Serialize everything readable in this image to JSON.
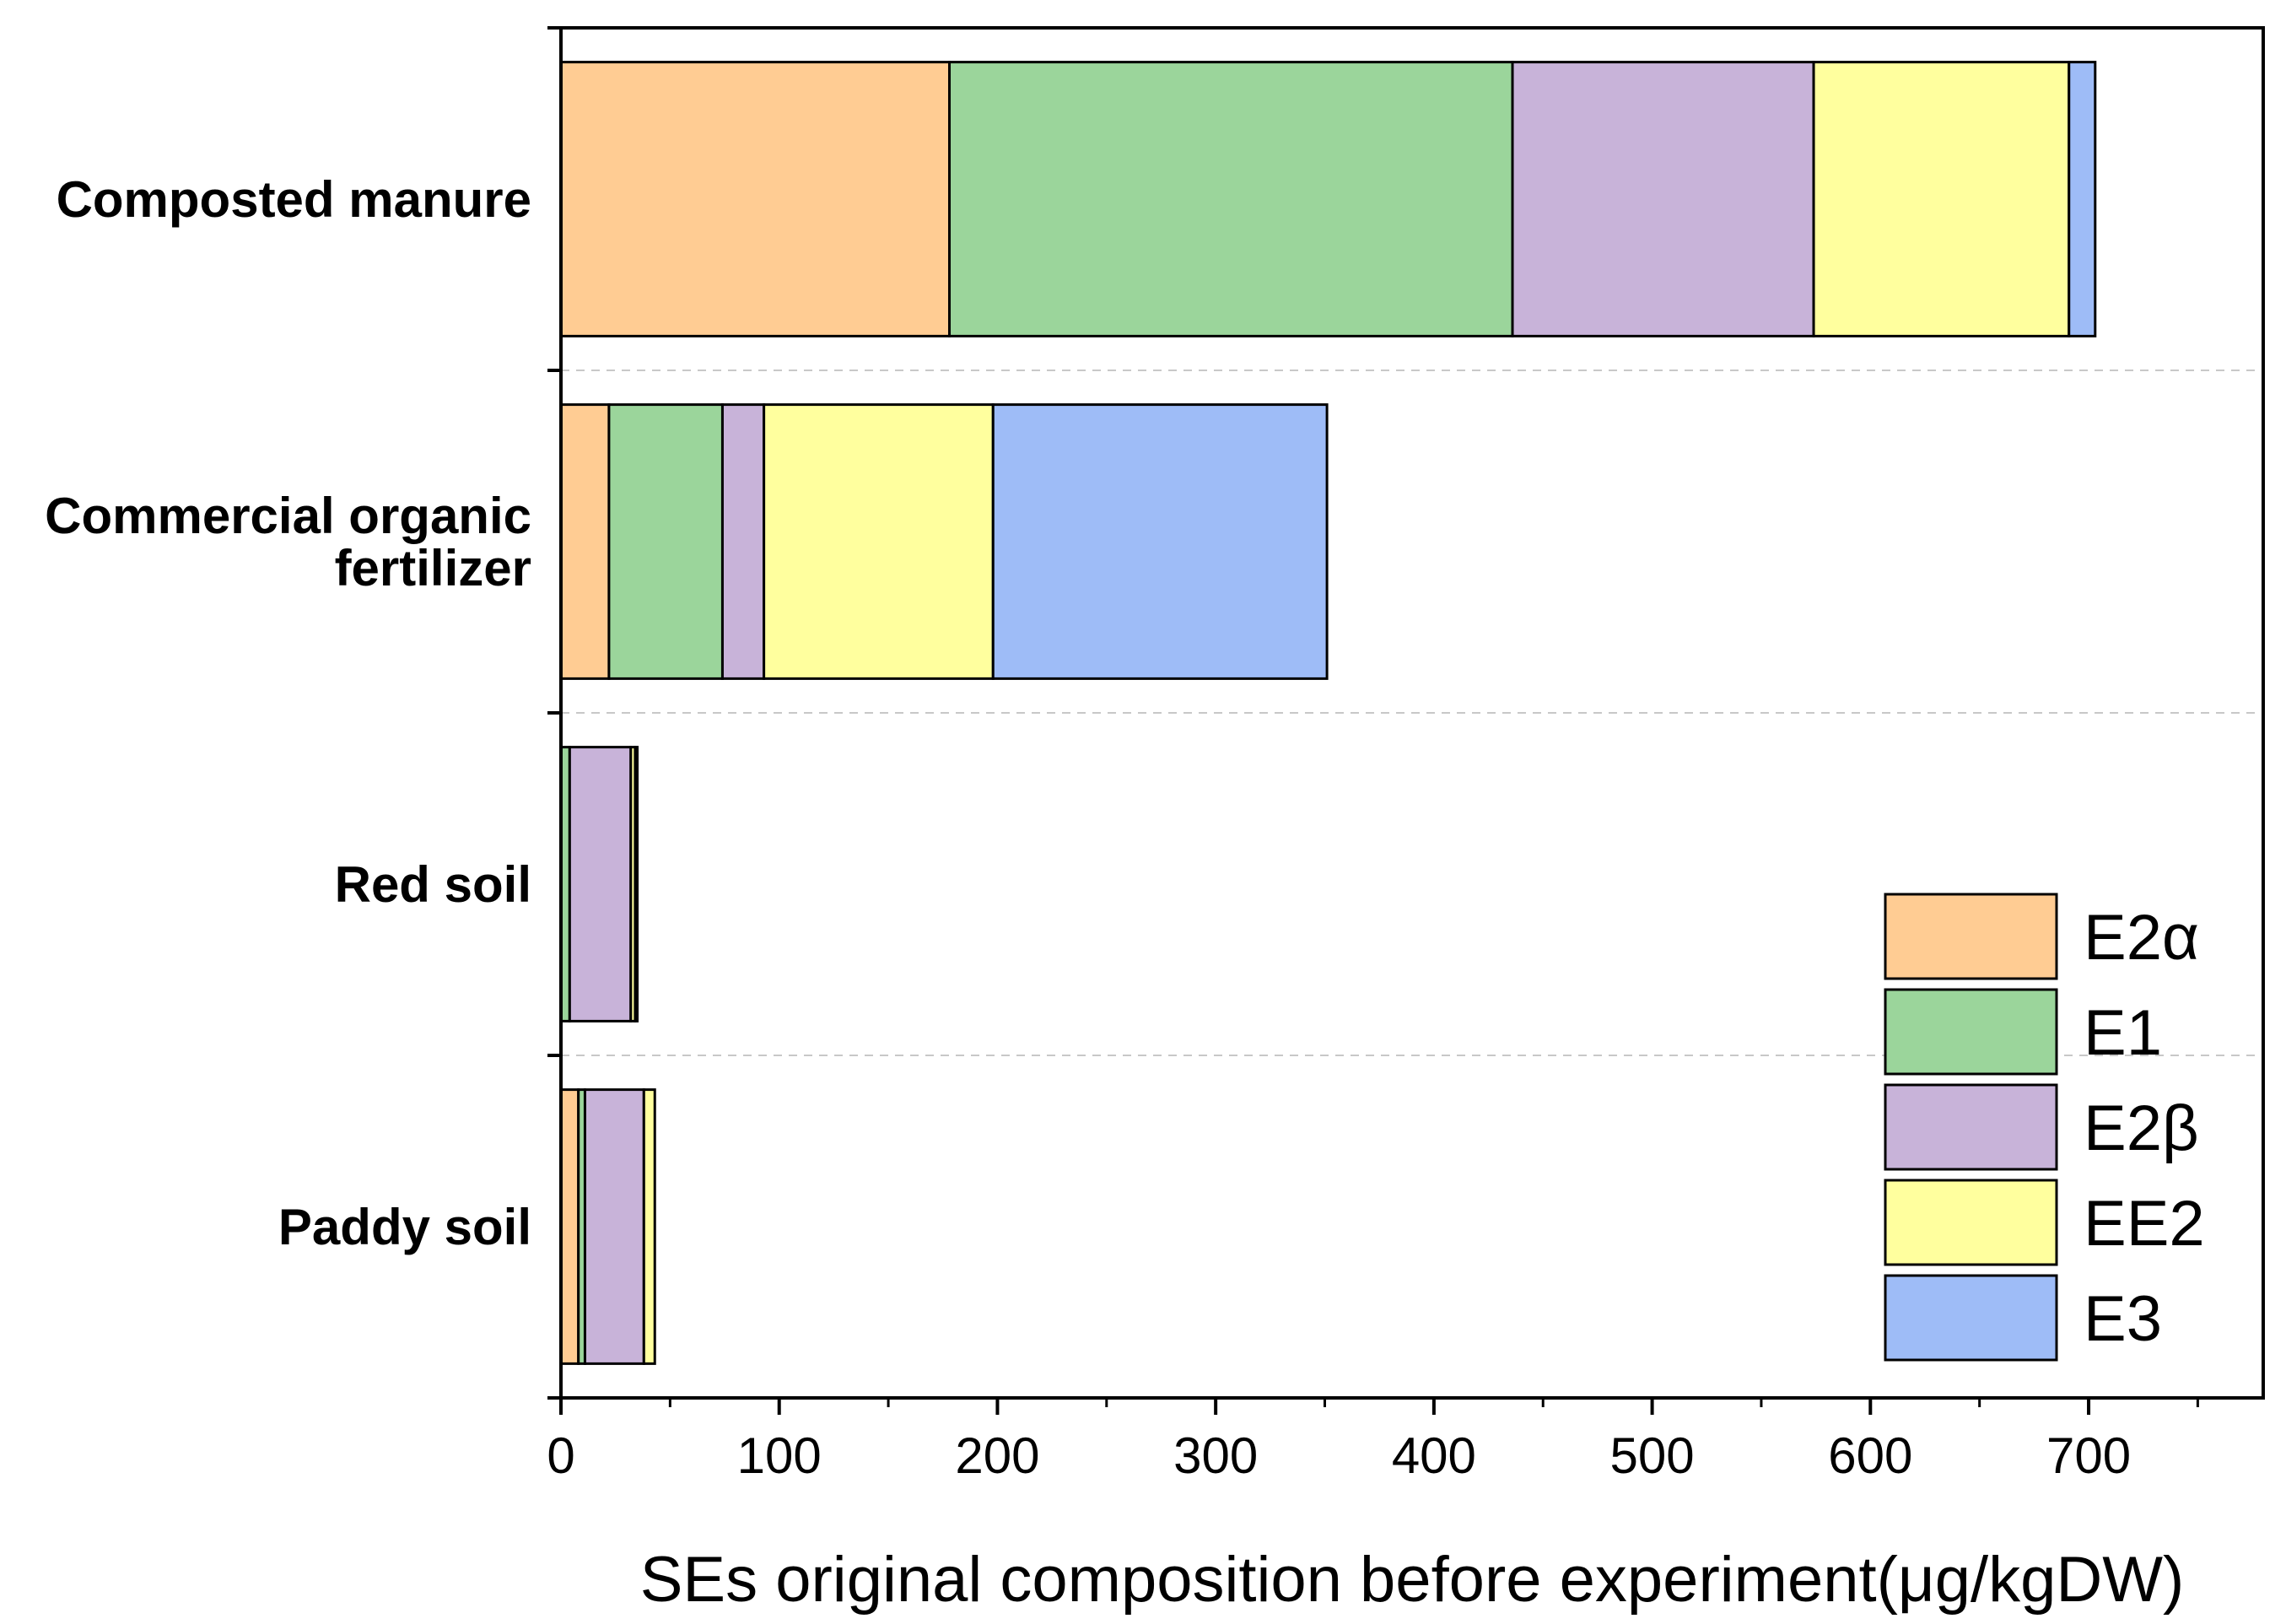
{
  "chart_data": {
    "type": "bar",
    "orientation": "horizontal",
    "stacked": true,
    "title": "",
    "xlabel": "SEs original composition before experiment(μg/kgDW)",
    "ylabel": "",
    "xlim": [
      0,
      780
    ],
    "xticks": [
      0,
      100,
      200,
      300,
      400,
      500,
      600,
      700
    ],
    "categories": [
      "Composted manure",
      "Commercial organic\nfertilizer",
      "Red soil",
      "Paddy soil"
    ],
    "series": [
      {
        "name": "E2α",
        "color": "#FFCC93",
        "values": [
          178,
          22,
          0,
          8
        ]
      },
      {
        "name": "E1",
        "color": "#9BD59B",
        "values": [
          258,
          52,
          4,
          3
        ]
      },
      {
        "name": "E2β",
        "color": "#C8B3D9",
        "values": [
          138,
          19,
          28,
          27
        ]
      },
      {
        "name": "EE2",
        "color": "#FFFF9E",
        "values": [
          117,
          105,
          2,
          5
        ]
      },
      {
        "name": "E3",
        "color": "#9EBCF7",
        "values": [
          12,
          153,
          1,
          0
        ]
      }
    ],
    "grid": "horizontal dashed separators between categories",
    "legend_position": "bottom-right"
  }
}
